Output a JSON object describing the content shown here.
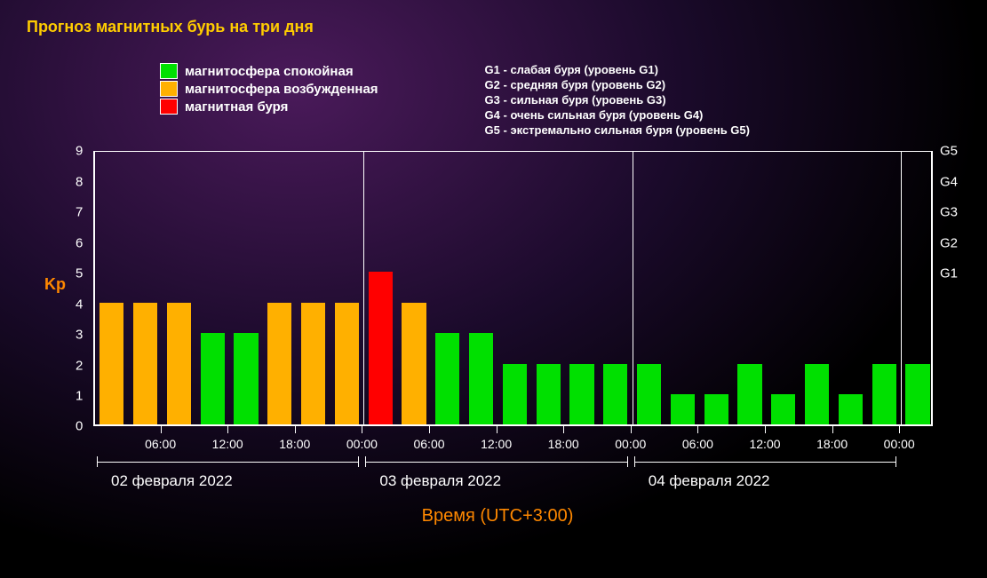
{
  "title": "Прогноз магнитных бурь на три дня",
  "title_color": "#ffcc00",
  "title_fontsize": 18,
  "legend": {
    "items": [
      {
        "color": "#00e000",
        "label": "магнитосфера спокойная"
      },
      {
        "color": "#ffb000",
        "label": "магнитосфера возбужденная"
      },
      {
        "color": "#ff0000",
        "label": "магнитная буря"
      }
    ],
    "g_scale": [
      "G1 - слабая буря (уровень G1)",
      "G2 - средняя буря (уровень G2)",
      "G3 - сильная буря (уровень G3)",
      "G4 - очень сильная буря (уровень G4)",
      "G5 - экстремально сильная буря (уровень G5)"
    ]
  },
  "chart": {
    "type": "bar",
    "ylabel": "Kp",
    "ylabel_color": "#ff8800",
    "xlabel": "Время (UTC+3:00)",
    "xlabel_color": "#ff8800",
    "ylim": [
      0,
      9
    ],
    "yticks": [
      0,
      1,
      2,
      3,
      4,
      5,
      6,
      7,
      8,
      9
    ],
    "g_right_labels": [
      {
        "y": 5,
        "label": "G1"
      },
      {
        "y": 6,
        "label": "G2"
      },
      {
        "y": 7,
        "label": "G3"
      },
      {
        "y": 8,
        "label": "G4"
      },
      {
        "y": 9,
        "label": "G5"
      }
    ],
    "grid_color": "#ffffff",
    "background_color": "transparent",
    "border_color": "#ffffff",
    "colors": {
      "green": "#00e000",
      "orange": "#ffb000",
      "red": "#ff0000"
    },
    "bar_width_ratio": 0.72,
    "days": [
      {
        "label": "02 февраля 2022",
        "ticks": [
          "06:00",
          "12:00",
          "18:00",
          "00:00"
        ]
      },
      {
        "label": "03 февраля 2022",
        "ticks": [
          "06:00",
          "12:00",
          "18:00",
          "00:00"
        ]
      },
      {
        "label": "04 февраля 2022",
        "ticks": [
          "06:00",
          "12:00",
          "18:00",
          "00:00"
        ]
      }
    ],
    "values": [
      {
        "v": 4,
        "c": "orange"
      },
      {
        "v": 4,
        "c": "orange"
      },
      {
        "v": 4,
        "c": "orange"
      },
      {
        "v": 3,
        "c": "green"
      },
      {
        "v": 3,
        "c": "green"
      },
      {
        "v": 4,
        "c": "orange"
      },
      {
        "v": 4,
        "c": "orange"
      },
      {
        "v": 4,
        "c": "orange"
      },
      {
        "v": 5,
        "c": "red"
      },
      {
        "v": 4,
        "c": "orange"
      },
      {
        "v": 3,
        "c": "green"
      },
      {
        "v": 3,
        "c": "green"
      },
      {
        "v": 2,
        "c": "green"
      },
      {
        "v": 2,
        "c": "green"
      },
      {
        "v": 2,
        "c": "green"
      },
      {
        "v": 2,
        "c": "green"
      },
      {
        "v": 2,
        "c": "green"
      },
      {
        "v": 1,
        "c": "green"
      },
      {
        "v": 1,
        "c": "green"
      },
      {
        "v": 2,
        "c": "green"
      },
      {
        "v": 1,
        "c": "green"
      },
      {
        "v": 2,
        "c": "green"
      },
      {
        "v": 1,
        "c": "green"
      },
      {
        "v": 2,
        "c": "green"
      },
      {
        "v": 2,
        "c": "green"
      }
    ]
  }
}
